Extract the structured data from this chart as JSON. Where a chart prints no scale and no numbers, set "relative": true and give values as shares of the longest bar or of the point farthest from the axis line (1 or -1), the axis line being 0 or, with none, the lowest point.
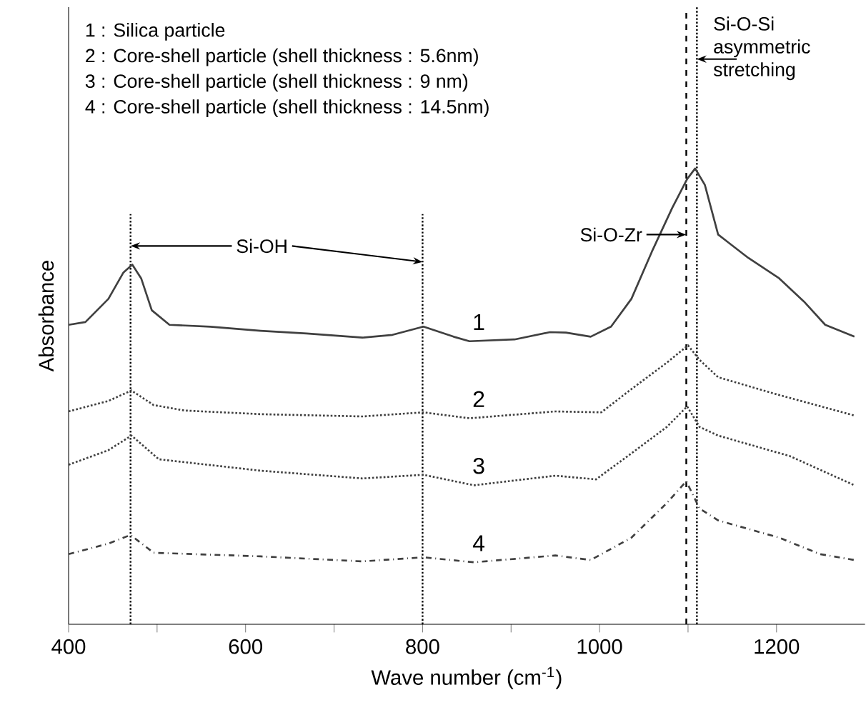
{
  "chart_data": {
    "type": "line",
    "relative": true,
    "xlabel": "Wave number (cm$^{-1}$)",
    "ylabel": "Absorbance",
    "xlim": [
      400,
      1300
    ],
    "xticks": [
      400,
      {
        "value": 500,
        "label": null
      },
      600,
      {
        "value": 700,
        "label": null
      },
      800,
      {
        "value": 900,
        "label": null
      },
      1000,
      {
        "value": 1100,
        "label": null
      },
      1200
    ],
    "marker": "none",
    "series": [
      {
        "name": "1",
        "color": "#404040",
        "line_style": "solid",
        "x": [
          400,
          419,
          445,
          462,
          472,
          482,
          494,
          514,
          560,
          617,
          669,
          732,
          766,
          801,
          835,
          853,
          904,
          944,
          962,
          990,
          1013,
          1036,
          1059,
          1082,
          1099,
          1108,
          1119,
          1134,
          1168,
          1203,
          1231,
          1255,
          1288
        ],
        "values": [
          0.657,
          0.663,
          0.714,
          0.772,
          0.789,
          0.759,
          0.689,
          0.657,
          0.653,
          0.644,
          0.638,
          0.629,
          0.635,
          0.653,
          0.631,
          0.621,
          0.625,
          0.641,
          0.64,
          0.631,
          0.653,
          0.714,
          0.817,
          0.913,
          0.977,
          1.0,
          0.964,
          0.855,
          0.804,
          0.759,
          0.708,
          0.657,
          0.631
        ]
      },
      {
        "name": "2",
        "color": "#404040",
        "line_style": "dotted",
        "x": [
          400,
          445,
          471,
          496,
          531,
          617,
          732,
          801,
          853,
          950,
          1002,
          1036,
          1076,
          1100,
          1113,
          1134,
          1203,
          1288
        ],
        "values": [
          0.467,
          0.49,
          0.513,
          0.481,
          0.469,
          0.461,
          0.456,
          0.465,
          0.452,
          0.467,
          0.465,
          0.516,
          0.574,
          0.612,
          0.58,
          0.542,
          0.503,
          0.458
        ]
      },
      {
        "name": "3",
        "color": "#404040",
        "line_style": "dotted",
        "x": [
          400,
          445,
          471,
          502,
          617,
          732,
          801,
          858,
          950,
          996,
          1036,
          1076,
          1099,
          1113,
          1134,
          1215,
          1288
        ],
        "values": [
          0.35,
          0.382,
          0.414,
          0.362,
          0.337,
          0.32,
          0.328,
          0.305,
          0.326,
          0.318,
          0.375,
          0.433,
          0.478,
          0.433,
          0.414,
          0.369,
          0.305
        ]
      },
      {
        "name": "4",
        "color": "#404040",
        "line_style": "dashdot",
        "x": [
          400,
          445,
          470,
          496,
          617,
          732,
          801,
          858,
          950,
          990,
          1036,
          1076,
          1098,
          1113,
          1134,
          1203,
          1249,
          1288
        ],
        "values": [
          0.154,
          0.177,
          0.196,
          0.157,
          0.149,
          0.138,
          0.147,
          0.136,
          0.151,
          0.141,
          0.19,
          0.266,
          0.314,
          0.254,
          0.228,
          0.19,
          0.154,
          0.141
        ]
      }
    ],
    "ref_lines": [
      {
        "axis": "x",
        "value": 470,
        "line_style": "dotted",
        "color": "#000000"
      },
      {
        "axis": "x",
        "value": 800,
        "line_style": "dotted",
        "color": "#000000"
      },
      {
        "axis": "x",
        "value": 1098,
        "line_style": "dashed",
        "color": "#000000"
      },
      {
        "axis": "x",
        "value": 1110,
        "line_style": "dotted",
        "color": "#000000"
      }
    ],
    "annotations": [
      "1 : Silica particle",
      "2 : Core-shell particle (shell thickness : 5.6nm)",
      "3 : Core-shell particle (shell thickness : 9 nm)",
      "4 : Core-shell particle (shell thickness : 14.5nm)",
      {
        "text": "Si-OH",
        "x": 470,
        "y": 0.83
      },
      {
        "text": "Si-O-Zr",
        "x": 1098,
        "y": 0.855
      },
      {
        "text": "Si-O-Si asymmetric stretching",
        "x": 1110,
        "y": 1.24
      }
    ]
  }
}
